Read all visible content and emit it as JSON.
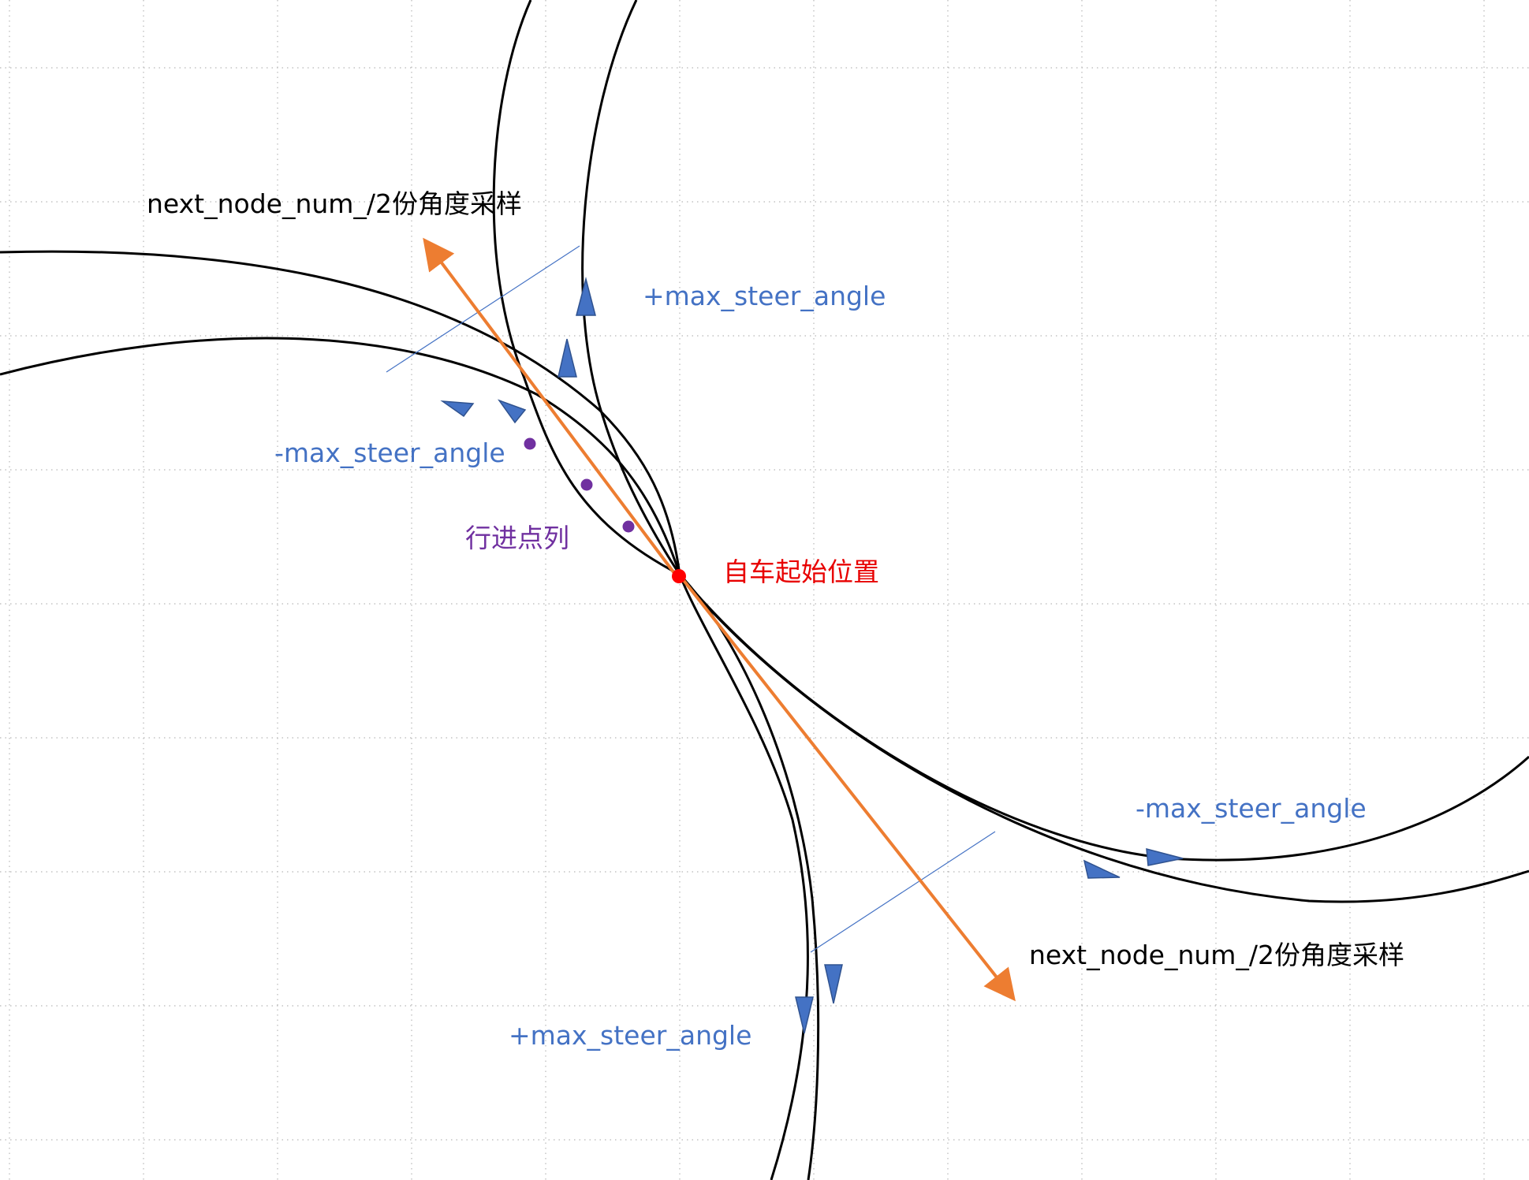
{
  "labels": {
    "sampling_top": "next_node_num_/2份角度采样",
    "sampling_bottom": "next_node_num_/2份角度采样",
    "plus_steer_top": "+max_steer_angle",
    "minus_steer_left": "-max_steer_angle",
    "minus_steer_right": "-max_steer_angle",
    "plus_steer_bottom": "+max_steer_angle",
    "path_points": "行进点列",
    "start_position": "自车起始位置"
  },
  "colors": {
    "grid": "#b7b7b7",
    "curve": "#000000",
    "sampling_arrow": "#ED7D31",
    "steer_arrow": "#4472C4",
    "path_point": "#7030A0",
    "start_point": "#FF0000",
    "background": "#ffffff"
  },
  "icons": {
    "steer_arrowhead": "triangle-arrowhead",
    "start_marker": "red-dot",
    "path_marker": "purple-dot"
  }
}
